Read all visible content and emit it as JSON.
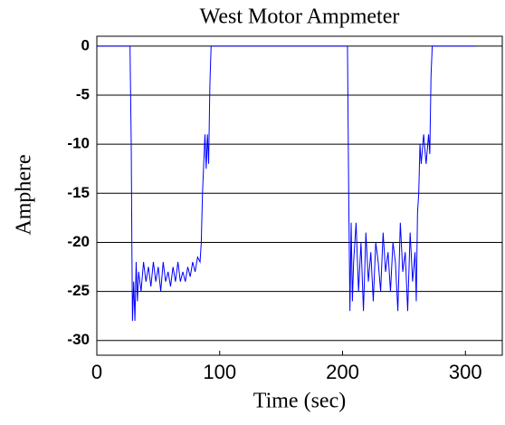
{
  "chart_data": {
    "type": "line",
    "title": "West Motor Ampmeter",
    "xlabel": "Time (sec)",
    "ylabel": "Amphere",
    "x": [
      0,
      27,
      28,
      28.5,
      29,
      30,
      31,
      32,
      33,
      34,
      36,
      38,
      40,
      42,
      44,
      46,
      48,
      50,
      52,
      54,
      56,
      58,
      60,
      62,
      64,
      66,
      68,
      70,
      72,
      74,
      76,
      78,
      80,
      82,
      84,
      85,
      86,
      87,
      88,
      89,
      90,
      91,
      92,
      93,
      150,
      180,
      204,
      205,
      206,
      207,
      208,
      209,
      211,
      213,
      215,
      217,
      219,
      221,
      223,
      225,
      227,
      229,
      231,
      233,
      235,
      237,
      239,
      241,
      243,
      245,
      247,
      249,
      251,
      253,
      255,
      257,
      259,
      260,
      261,
      262,
      263,
      264,
      266,
      268,
      270,
      271,
      272,
      273,
      308
    ],
    "values": [
      0,
      0,
      -10,
      -20,
      -28,
      -24,
      -28,
      -22,
      -26,
      -23,
      -25,
      -22,
      -24,
      -22.5,
      -24.5,
      -22,
      -24,
      -22.5,
      -25,
      -22,
      -24,
      -23,
      -24.5,
      -22.5,
      -24,
      -22,
      -24,
      -23,
      -24,
      -22.5,
      -23.5,
      -22,
      -23,
      -21.5,
      -22,
      -20,
      -15,
      -12,
      -9,
      -12.5,
      -9,
      -12,
      -4,
      0,
      0,
      0,
      0,
      -15,
      -27,
      -18,
      -26,
      -22,
      -18,
      -25,
      -20,
      -27,
      -19,
      -24,
      -21,
      -26,
      -20,
      -22,
      -25,
      -19,
      -23,
      -21,
      -25,
      -20,
      -22,
      -27,
      -18,
      -23,
      -21,
      -27,
      -19,
      -24,
      -21,
      -26,
      -17,
      -15,
      -10,
      -12,
      -9,
      -12,
      -9,
      -11,
      -3,
      0,
      0
    ],
    "color": "#0000ff",
    "xlim": [
      0,
      330
    ],
    "ylim": [
      -31.5,
      1
    ],
    "xticks": [
      0,
      100,
      200,
      300
    ],
    "yticks": [
      0,
      -5,
      -10,
      -15,
      -20,
      -25,
      -30
    ],
    "grid": true
  }
}
